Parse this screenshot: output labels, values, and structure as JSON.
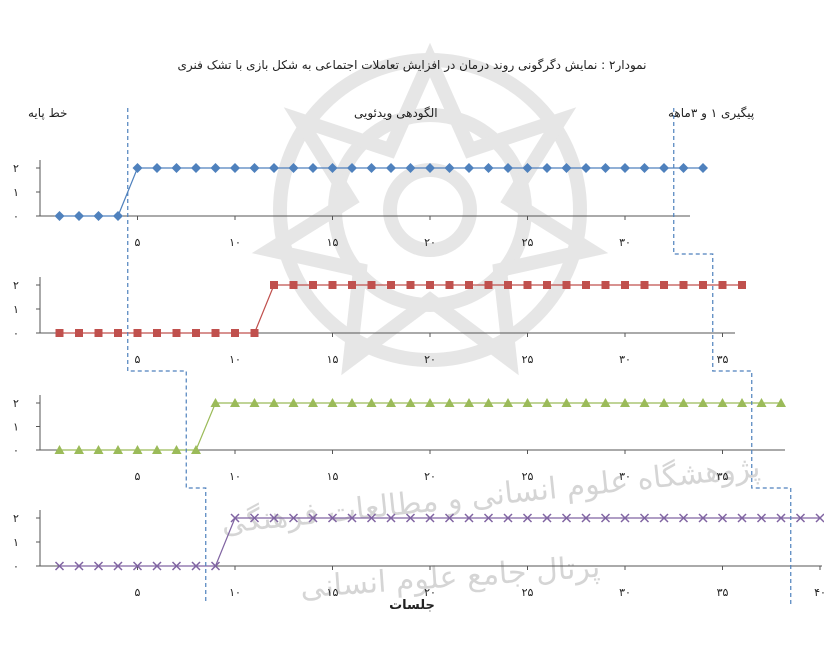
{
  "figure": {
    "title": "نمودار۲ : نمایش دگرگونی روند درمان در افزایش تعاملات اجتماعی به شکل بازی با تشک فنری",
    "phase_labels": {
      "baseline": "خط پایه",
      "intervention": "الگودهی ویدئویی",
      "followup": "پیگیری ۱ و ۳ماهه"
    },
    "xlabel": "جلسات",
    "watermark_lines": [
      "پژوهشگاه علوم انسانی و مطالعات فرهنگی",
      "پرتال جامع علوم انسانی"
    ]
  },
  "chart_data": [
    {
      "type": "line",
      "marker": "diamond",
      "color": "#4f81bd",
      "x": [
        1,
        2,
        3,
        4,
        5,
        6,
        7,
        8,
        9,
        10,
        11,
        12,
        13,
        14,
        15,
        16,
        17,
        18,
        19,
        20,
        21,
        22,
        23,
        24,
        25,
        26,
        27,
        28,
        29,
        30,
        31,
        32,
        33,
        34
      ],
      "values": [
        0,
        0,
        0,
        0,
        2,
        2,
        2,
        2,
        2,
        2,
        2,
        2,
        2,
        2,
        2,
        2,
        2,
        2,
        2,
        2,
        2,
        2,
        2,
        2,
        2,
        2,
        2,
        2,
        2,
        2,
        2,
        2,
        2,
        2
      ],
      "baseline_end": 4.5,
      "intervention_end": 32.5,
      "ylim": [
        0,
        2
      ],
      "yticks": [
        "۰",
        "۱",
        "۲"
      ],
      "xticks": [
        5,
        10,
        15,
        20,
        25,
        30
      ],
      "xtick_labels": [
        "۵",
        "۱۰",
        "۱۵",
        "۲۰",
        "۲۵",
        "۳۰"
      ]
    },
    {
      "type": "line",
      "marker": "square",
      "color": "#c0504d",
      "x": [
        1,
        2,
        3,
        4,
        5,
        6,
        7,
        8,
        9,
        10,
        11,
        12,
        13,
        14,
        15,
        16,
        17,
        18,
        19,
        20,
        21,
        22,
        23,
        24,
        25,
        26,
        27,
        28,
        29,
        30,
        31,
        32,
        33,
        34,
        35,
        36
      ],
      "values": [
        0,
        0,
        0,
        0,
        0,
        0,
        0,
        0,
        0,
        0,
        0,
        2,
        2,
        2,
        2,
        2,
        2,
        2,
        2,
        2,
        2,
        2,
        2,
        2,
        2,
        2,
        2,
        2,
        2,
        2,
        2,
        2,
        2,
        2,
        2,
        2
      ],
      "baseline_end": 4.5,
      "intervention_end": 34.5,
      "ylim": [
        0,
        2
      ],
      "yticks": [
        "۰",
        "۱",
        "۲"
      ],
      "xticks": [
        5,
        10,
        15,
        20,
        25,
        30,
        35
      ],
      "xtick_labels": [
        "۵",
        "۱۰",
        "۱۵",
        "۲۰",
        "۲۵",
        "۳۰",
        "۳۵"
      ]
    },
    {
      "type": "line",
      "marker": "triangle",
      "color": "#9bbb59",
      "x": [
        1,
        2,
        3,
        4,
        5,
        6,
        7,
        8,
        9,
        10,
        11,
        12,
        13,
        14,
        15,
        16,
        17,
        18,
        19,
        20,
        21,
        22,
        23,
        24,
        25,
        26,
        27,
        28,
        29,
        30,
        31,
        32,
        33,
        34,
        35,
        36,
        37,
        38
      ],
      "values": [
        0,
        0,
        0,
        0,
        0,
        0,
        0,
        0,
        2,
        2,
        2,
        2,
        2,
        2,
        2,
        2,
        2,
        2,
        2,
        2,
        2,
        2,
        2,
        2,
        2,
        2,
        2,
        2,
        2,
        2,
        2,
        2,
        2,
        2,
        2,
        2,
        2,
        2
      ],
      "baseline_end": 7.5,
      "intervention_end": 36.5,
      "ylim": [
        0,
        2
      ],
      "yticks": [
        "۰",
        "۱",
        "۲"
      ],
      "xticks": [
        5,
        10,
        15,
        20,
        25,
        30,
        35
      ],
      "xtick_labels": [
        "۵",
        "۱۰",
        "۱۵",
        "۲۰",
        "۲۵",
        "۳۰",
        "۳۵"
      ]
    },
    {
      "type": "line",
      "marker": "x",
      "color": "#8064a2",
      "x": [
        1,
        2,
        3,
        4,
        5,
        6,
        7,
        8,
        9,
        10,
        11,
        12,
        13,
        14,
        15,
        16,
        17,
        18,
        19,
        20,
        21,
        22,
        23,
        24,
        25,
        26,
        27,
        28,
        29,
        30,
        31,
        32,
        33,
        34,
        35,
        36,
        37,
        38,
        39,
        40
      ],
      "values": [
        0,
        0,
        0,
        0,
        0,
        0,
        0,
        0,
        0,
        2,
        2,
        2,
        2,
        2,
        2,
        2,
        2,
        2,
        2,
        2,
        2,
        2,
        2,
        2,
        2,
        2,
        2,
        2,
        2,
        2,
        2,
        2,
        2,
        2,
        2,
        2,
        2,
        2,
        2,
        2
      ],
      "baseline_end": 8.5,
      "intervention_end": 38.5,
      "ylim": [
        0,
        2
      ],
      "yticks": [
        "۰",
        "۱",
        "۲"
      ],
      "xticks": [
        5,
        10,
        15,
        20,
        25,
        30,
        35,
        40
      ],
      "xtick_labels": [
        "۵",
        "۱۰",
        "۱۵",
        "۲۰",
        "۲۵",
        "۳۰",
        "۳۵",
        "۴۰"
      ]
    }
  ]
}
